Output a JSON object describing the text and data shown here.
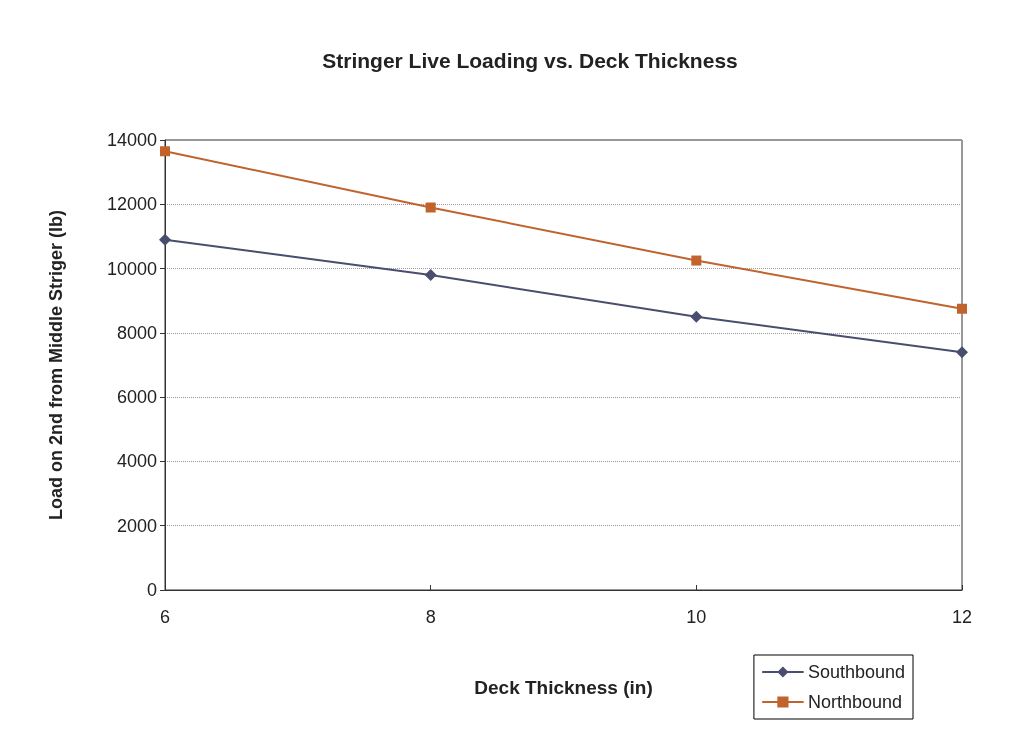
{
  "chart_data": {
    "type": "line",
    "title": "Stringer Live Loading vs. Deck Thickness",
    "xlabel": "Deck Thickness (in)",
    "ylabel": "Load on 2nd from Middle Striger (lb)",
    "x": [
      6,
      8,
      10,
      12
    ],
    "series": [
      {
        "name": "Southbound",
        "color": "#4a4e6e",
        "marker": "diamond",
        "values": [
          10900,
          9800,
          8500,
          7400
        ]
      },
      {
        "name": "Northbound",
        "color": "#c0632d",
        "marker": "square",
        "values": [
          13650,
          11900,
          10250,
          8750
        ]
      }
    ],
    "xlim": [
      6,
      12
    ],
    "xticks": [
      6,
      8,
      10,
      12
    ],
    "ylim": [
      0,
      14000
    ],
    "yticks": [
      0,
      2000,
      4000,
      6000,
      8000,
      10000,
      12000,
      14000
    ],
    "grid": "y",
    "legend": "bottom right",
    "line_style": "solid"
  }
}
